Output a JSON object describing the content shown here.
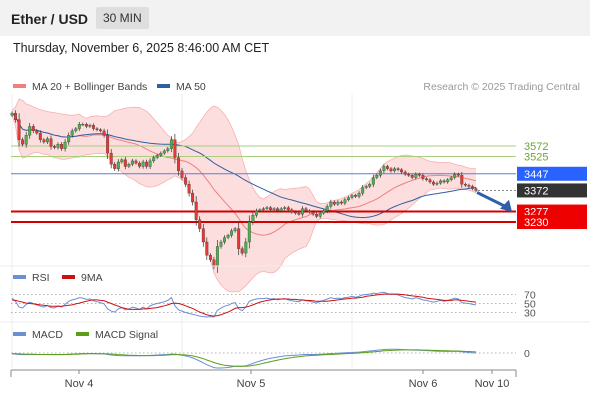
{
  "header": {
    "pair": "Ether / USD",
    "interval": "30 MIN",
    "datetime": "Thursday, November 6, 2025 8:46:00 AM CET"
  },
  "chart_data": [
    {
      "type": "candlestick",
      "panel": "price",
      "legend": [
        {
          "name": "MA 20 + Bollinger Bands",
          "color": "#f08080"
        },
        {
          "name": "MA 50",
          "color": "#2e5fa3"
        }
      ],
      "copyright": "Research © 2025 Trading Central",
      "x_ticks": [
        "Nov 4",
        "Nov 5",
        "Nov 6",
        "Nov 10"
      ],
      "ylim": [
        2850,
        3900
      ],
      "levels": [
        {
          "value": 3572,
          "label": "3572",
          "role": "resistance",
          "color": "#7cb342"
        },
        {
          "value": 3525,
          "label": "3525",
          "role": "resistance",
          "color": "#7cb342"
        },
        {
          "value": 3447,
          "label": "3447",
          "role": "pivot",
          "color": "#2962ff"
        },
        {
          "value": 3372,
          "label": "3372",
          "role": "last-price",
          "color": "#333333"
        },
        {
          "value": 3277,
          "label": "3277",
          "role": "support",
          "color": "#e00000"
        },
        {
          "value": 3230,
          "label": "3230",
          "role": "support",
          "color": "#e00000"
        }
      ],
      "close_series": [
        3720,
        3690,
        3600,
        3580,
        3620,
        3660,
        3640,
        3630,
        3600,
        3590,
        3605,
        3570,
        3565,
        3580,
        3560,
        3590,
        3620,
        3640,
        3650,
        3670,
        3670,
        3660,
        3665,
        3650,
        3645,
        3640,
        3620,
        3540,
        3490,
        3470,
        3500,
        3510,
        3480,
        3490,
        3505,
        3495,
        3480,
        3500,
        3480,
        3505,
        3520,
        3530,
        3540,
        3550,
        3560,
        3600,
        3520,
        3460,
        3430,
        3400,
        3360,
        3320,
        3240,
        3200,
        3140,
        3080,
        3060,
        3030,
        3120,
        3140,
        3160,
        3170,
        3190,
        3200,
        3110,
        3090,
        3140,
        3230,
        3260,
        3280,
        3285,
        3290,
        3295,
        3285,
        3290,
        3280,
        3290,
        3295,
        3285,
        3275,
        3270,
        3265,
        3290,
        3280,
        3275,
        3265,
        3255,
        3270,
        3280,
        3300,
        3320,
        3310,
        3320,
        3315,
        3330,
        3340,
        3350,
        3345,
        3360,
        3385,
        3390,
        3400,
        3430,
        3440,
        3460,
        3480,
        3470,
        3460,
        3470,
        3465,
        3455,
        3445,
        3440,
        3430,
        3445,
        3440,
        3425,
        3420,
        3410,
        3400,
        3405,
        3415,
        3410,
        3420,
        3430,
        3445,
        3440,
        3400,
        3395,
        3390,
        3380,
        3372
      ],
      "projection": {
        "from": 3372,
        "to": 3240,
        "direction": "down"
      }
    },
    {
      "type": "line",
      "panel": "rsi",
      "legend": [
        {
          "name": "RSI",
          "color": "#6a8fd4"
        },
        {
          "name": "9MA",
          "color": "#cc1111"
        }
      ],
      "levels": [
        "70",
        "50",
        "30"
      ],
      "ylim": [
        20,
        80
      ],
      "series": [
        {
          "name": "RSI",
          "values": [
            62,
            55,
            42,
            40,
            48,
            53,
            50,
            47,
            44,
            42,
            46,
            41,
            40,
            45,
            42,
            48,
            55,
            58,
            60,
            63,
            62,
            59,
            60,
            56,
            54,
            52,
            49,
            38,
            33,
            31,
            38,
            41,
            36,
            38,
            42,
            40,
            37,
            42,
            38,
            45,
            48,
            50,
            52,
            54,
            57,
            63,
            45,
            36,
            33,
            30,
            28,
            26,
            24,
            22,
            21,
            20,
            21,
            20,
            35,
            40,
            44,
            46,
            50,
            52,
            38,
            34,
            42,
            55,
            58,
            60,
            61,
            61,
            62,
            60,
            61,
            58,
            60,
            61,
            58,
            56,
            55,
            54,
            58,
            56,
            55,
            53,
            51,
            55,
            57,
            60,
            63,
            61,
            62,
            61,
            63,
            64,
            66,
            64,
            66,
            69,
            70,
            71,
            73,
            72,
            74,
            75,
            72,
            70,
            71,
            69,
            66,
            63,
            62,
            60,
            63,
            61,
            58,
            57,
            55,
            53,
            55,
            57,
            55,
            57,
            59,
            62,
            60,
            52,
            51,
            50,
            48,
            47
          ]
        },
        {
          "name": "9MA",
          "values": [
            58,
            57,
            55,
            53,
            51,
            50,
            49,
            48,
            47,
            46,
            45,
            44,
            44,
            44,
            44,
            45,
            46,
            47,
            49,
            51,
            53,
            55,
            57,
            58,
            58,
            57,
            56,
            53,
            50,
            47,
            44,
            41,
            39,
            37,
            37,
            37,
            37,
            38,
            38,
            39,
            40,
            41,
            43,
            45,
            47,
            50,
            51,
            50,
            48,
            45,
            42,
            39,
            35,
            31,
            28,
            25,
            23,
            22,
            23,
            25,
            28,
            31,
            35,
            39,
            41,
            41,
            42,
            44,
            47,
            50,
            53,
            55,
            57,
            58,
            59,
            60,
            60,
            60,
            60,
            59,
            59,
            58,
            58,
            57,
            57,
            56,
            55,
            55,
            55,
            55,
            56,
            57,
            58,
            59,
            60,
            61,
            62,
            62,
            63,
            64,
            66,
            67,
            68,
            69,
            70,
            71,
            71,
            71,
            71,
            71,
            70,
            69,
            68,
            67,
            66,
            65,
            64,
            62,
            61,
            60,
            59,
            58,
            57,
            57,
            57,
            58,
            58,
            57,
            56,
            55,
            54,
            53
          ]
        }
      ]
    },
    {
      "type": "line",
      "panel": "macd",
      "legend": [
        {
          "name": "MACD",
          "color": "#6a8fd4"
        },
        {
          "name": "MACD Signal",
          "color": "#5a9e1a"
        }
      ],
      "levels": [
        "0"
      ],
      "ylim": [
        -110,
        50
      ],
      "series": [
        {
          "name": "MACD",
          "values": [
            -5,
            -6,
            -8,
            -9,
            -9,
            -9,
            -8,
            -8,
            -8,
            -8,
            -8,
            -9,
            -9,
            -9,
            -9,
            -8,
            -7,
            -6,
            -5,
            -4,
            -3,
            -3,
            -3,
            -3,
            -4,
            -4,
            -5,
            -8,
            -11,
            -13,
            -14,
            -14,
            -15,
            -15,
            -15,
            -15,
            -15,
            -14,
            -14,
            -13,
            -12,
            -11,
            -10,
            -9,
            -8,
            -6,
            -7,
            -9,
            -12,
            -16,
            -21,
            -27,
            -35,
            -44,
            -54,
            -64,
            -72,
            -80,
            -82,
            -82,
            -81,
            -79,
            -76,
            -72,
            -72,
            -72,
            -70,
            -64,
            -57,
            -50,
            -44,
            -38,
            -33,
            -29,
            -25,
            -22,
            -19,
            -16,
            -14,
            -13,
            -12,
            -11,
            -9,
            -8,
            -8,
            -8,
            -8,
            -7,
            -6,
            -5,
            -3,
            -2,
            -1,
            0,
            1,
            2,
            3,
            4,
            5,
            7,
            9,
            11,
            13,
            15,
            17,
            19,
            20,
            20,
            20,
            20,
            19,
            18,
            17,
            16,
            16,
            15,
            14,
            13,
            12,
            11,
            10,
            10,
            9,
            9,
            9,
            9,
            9,
            7,
            5,
            3,
            1,
            0
          ]
        },
        {
          "name": "MACD Signal",
          "values": [
            -3,
            -4,
            -5,
            -6,
            -7,
            -7,
            -7,
            -8,
            -8,
            -8,
            -8,
            -8,
            -8,
            -8,
            -8,
            -8,
            -8,
            -7,
            -7,
            -6,
            -5,
            -5,
            -4,
            -4,
            -4,
            -4,
            -4,
            -5,
            -6,
            -7,
            -9,
            -10,
            -11,
            -12,
            -13,
            -13,
            -14,
            -14,
            -14,
            -14,
            -14,
            -13,
            -13,
            -12,
            -11,
            -10,
            -9,
            -9,
            -10,
            -11,
            -13,
            -16,
            -20,
            -25,
            -31,
            -38,
            -45,
            -52,
            -58,
            -63,
            -67,
            -69,
            -71,
            -72,
            -72,
            -72,
            -72,
            -71,
            -68,
            -65,
            -61,
            -56,
            -52,
            -47,
            -43,
            -39,
            -35,
            -31,
            -28,
            -25,
            -22,
            -20,
            -18,
            -16,
            -14,
            -13,
            -12,
            -11,
            -10,
            -9,
            -8,
            -7,
            -6,
            -5,
            -4,
            -3,
            -2,
            -1,
            0,
            2,
            3,
            5,
            6,
            8,
            10,
            12,
            13,
            14,
            15,
            16,
            17,
            17,
            17,
            17,
            17,
            17,
            16,
            16,
            15,
            14,
            14,
            13,
            12,
            12,
            11,
            11,
            11,
            10,
            9,
            8,
            7,
            6
          ]
        }
      ]
    }
  ]
}
